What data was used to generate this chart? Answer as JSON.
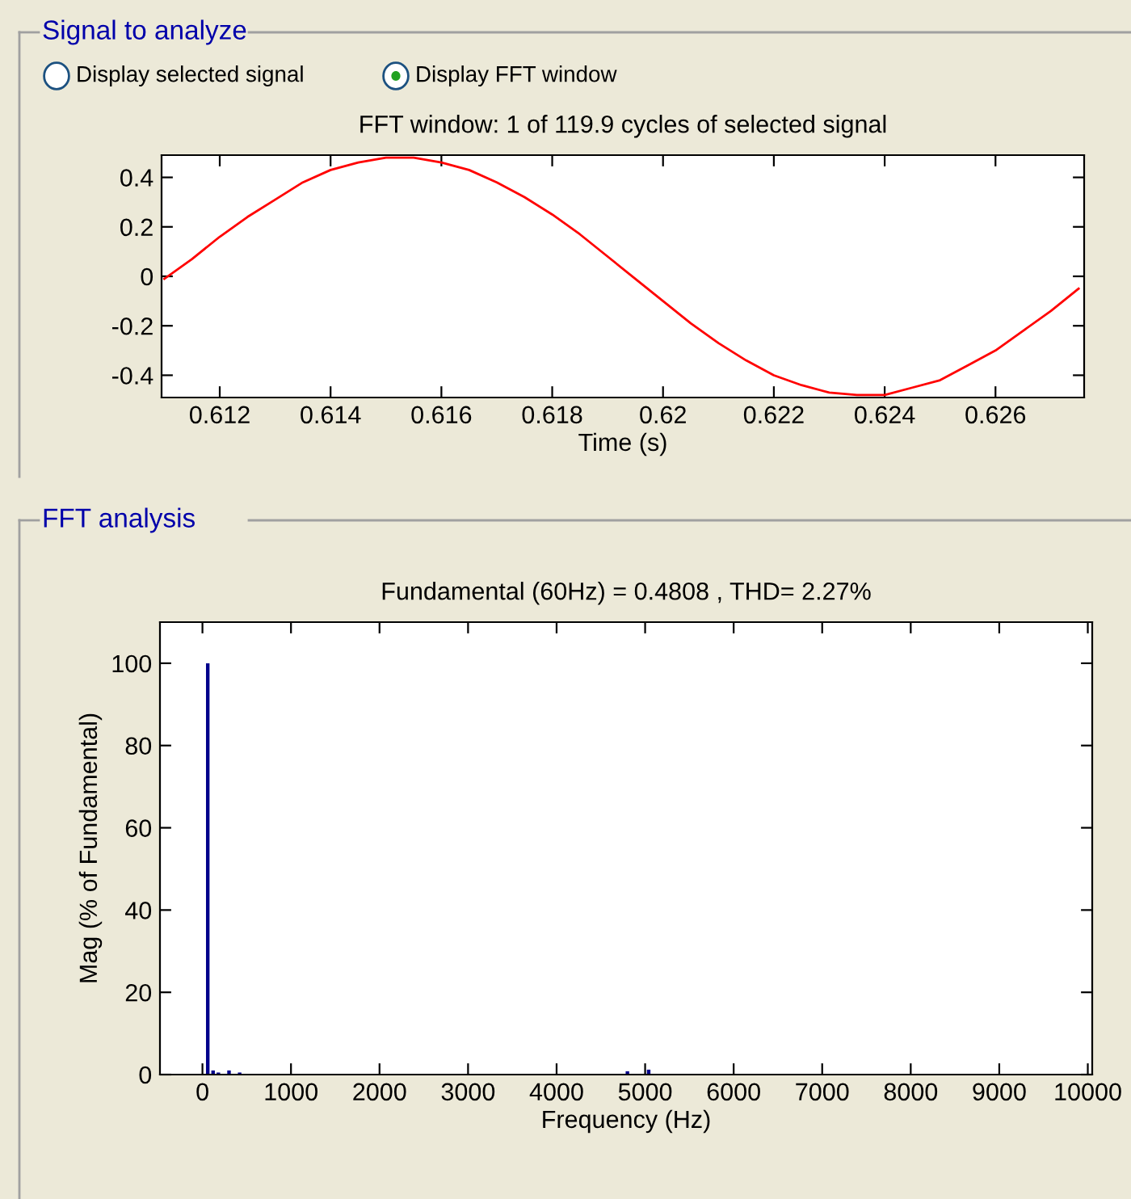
{
  "chart_data": [
    {
      "type": "line",
      "title": "FFT window: 1 of 119.9 cycles of selected signal",
      "xlabel": "Time (s)",
      "annotations": [
        "Signal to analyze",
        "Display selected signal",
        "Display FFT window"
      ],
      "x": [
        0.611,
        0.6115,
        0.612,
        0.6125,
        0.613,
        0.6135,
        0.614,
        0.6145,
        0.615,
        0.6155,
        0.616,
        0.6165,
        0.617,
        0.6175,
        0.618,
        0.6185,
        0.619,
        0.6195,
        0.62,
        0.6205,
        0.621,
        0.6215,
        0.622,
        0.6225,
        0.623,
        0.6235,
        0.624,
        0.6245,
        0.625,
        0.6255,
        0.626,
        0.6265,
        0.627,
        0.6275
      ],
      "series": [
        {
          "color": "#ff0000",
          "values": [
            -0.01,
            0.07,
            0.16,
            0.24,
            0.31,
            0.38,
            0.43,
            0.46,
            0.48,
            0.48,
            0.46,
            0.43,
            0.38,
            0.32,
            0.25,
            0.17,
            0.08,
            -0.01,
            -0.1,
            -0.19,
            -0.27,
            -0.34,
            -0.4,
            -0.44,
            -0.47,
            -0.48,
            -0.48,
            -0.45,
            -0.42,
            -0.36,
            -0.3,
            -0.22,
            -0.14,
            -0.05
          ]
        }
      ],
      "xlim": [
        0.61095,
        0.6276
      ],
      "xticks": [
        0.612,
        0.614,
        0.616,
        0.618,
        {
          "value": 0.62,
          "label": "0.62"
        },
        0.622,
        0.624,
        0.626
      ],
      "ylim": [
        -0.49,
        0.49
      ],
      "yticks": [
        -0.4,
        -0.2,
        0,
        0.2,
        0.4
      ],
      "grid": false,
      "legend": false
    },
    {
      "type": "bar",
      "title": "Fundamental (60Hz) = 0.4808 , THD= 2.27%",
      "xlabel": "Frequency (Hz)",
      "ylabel": "Mag (% of Fundamental)",
      "annotations": [
        "FFT analysis"
      ],
      "x": [
        60,
        120,
        180,
        300,
        420,
        4800,
        5040
      ],
      "series": [
        {
          "color": "#00008b",
          "values": [
            100,
            1,
            0.5,
            1,
            0.5,
            0.8,
            1.2
          ]
        }
      ],
      "xlim": [
        -480,
        10050
      ],
      "xticks": [
        0,
        1000,
        2000,
        3000,
        4000,
        5000,
        6000,
        7000,
        8000,
        9000,
        10000
      ],
      "ylim": [
        0,
        110
      ],
      "yticks": [
        0,
        20,
        40,
        60,
        80,
        100
      ],
      "grid": false,
      "legend": false
    }
  ]
}
